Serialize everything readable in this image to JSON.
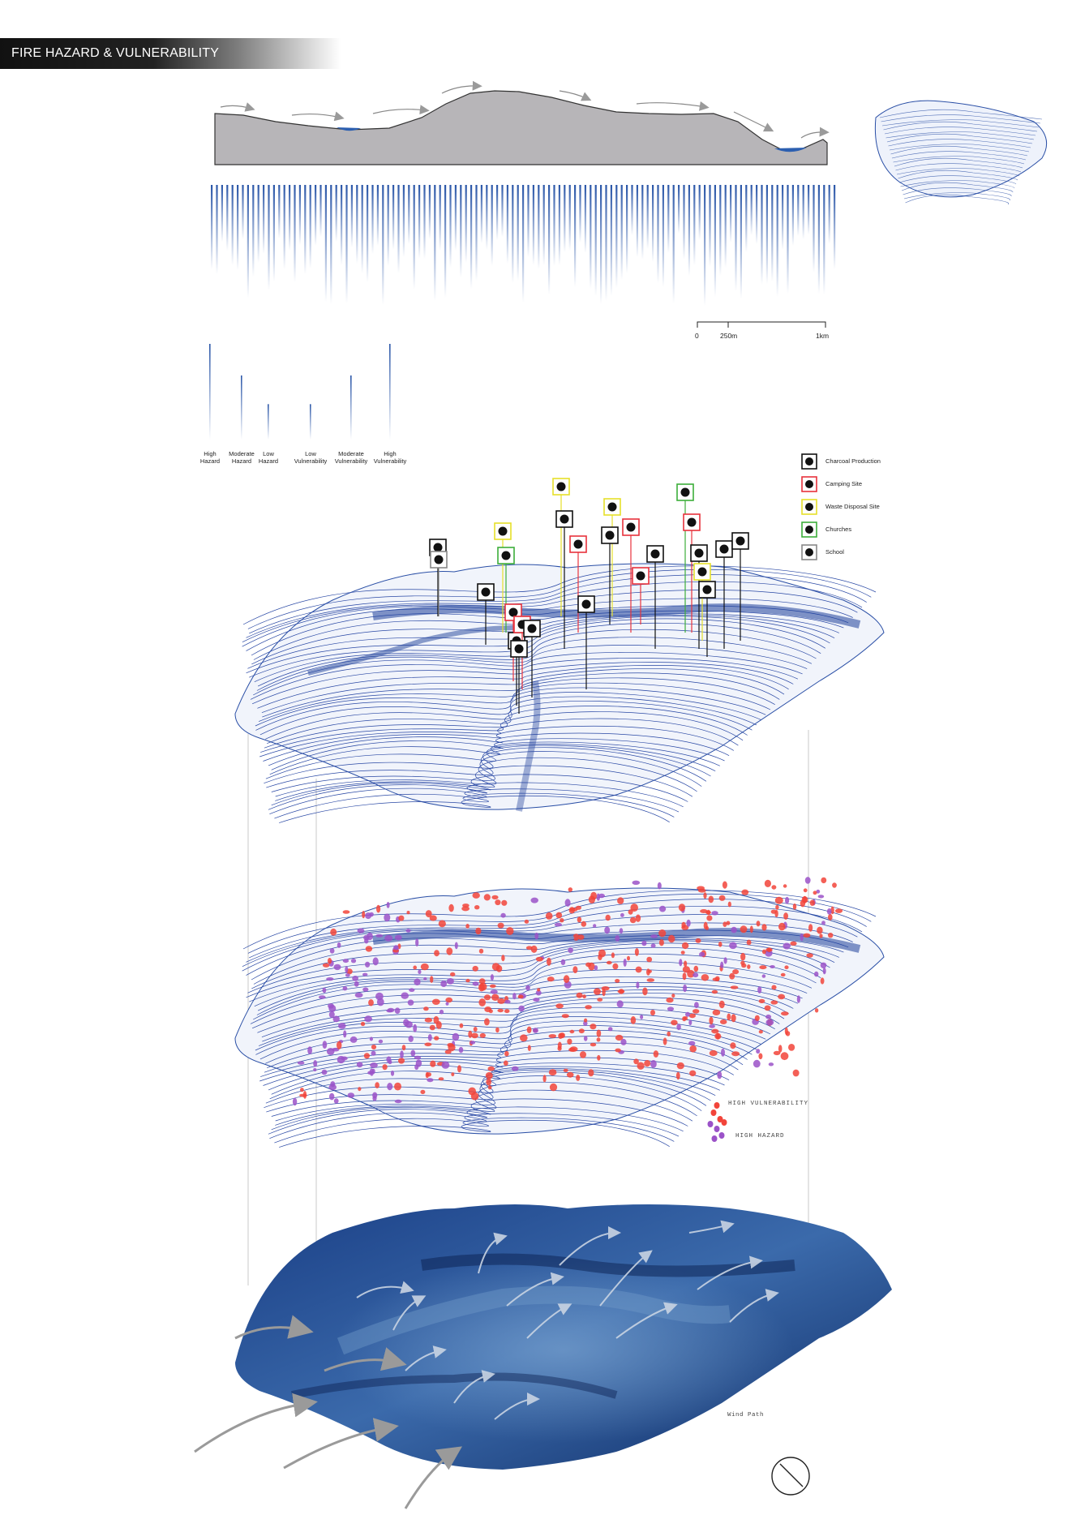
{
  "title": "FIRE HAZARD & VULNERABILITY",
  "scale_bar": {
    "labels": [
      "0",
      "250m",
      "1km"
    ]
  },
  "bar_legend": [
    {
      "label": "High\nHazard",
      "value": 1.0
    },
    {
      "label": "Moderate\nHazard",
      "value": 0.67
    },
    {
      "label": "Low\nHazard",
      "value": 0.37
    },
    {
      "label": "Low\nVulnerability",
      "value": 0.37
    },
    {
      "label": "Moderate\nVulnerability",
      "value": 0.67
    },
    {
      "label": "High\nVulnerability",
      "value": 1.0
    }
  ],
  "poi_legend": [
    {
      "label": "Charcoal Production",
      "color": "#111111",
      "icon": "charcoal-icon"
    },
    {
      "label": "Camping Site",
      "color": "#e8323c",
      "icon": "tent-icon"
    },
    {
      "label": "Waste Disposal Site",
      "color": "#e6e02a",
      "icon": "trash-icon"
    },
    {
      "label": "Churches",
      "color": "#3cae3a",
      "icon": "church-icon"
    },
    {
      "label": "School",
      "color": "#888888",
      "icon": "school-icon"
    }
  ],
  "risk_legend": [
    {
      "label": "HIGH VULNERABILITY",
      "color": "#f2443a"
    },
    {
      "label": "HIGH HAZARD",
      "color": "#9b52c8"
    }
  ],
  "wind_label": "Wind Path",
  "colors": {
    "contour": "#1e3f9c",
    "terrain_dark": "#0d2a63",
    "terrain_light": "#3a6aa8",
    "section_fill": "#b7b5b8"
  }
}
